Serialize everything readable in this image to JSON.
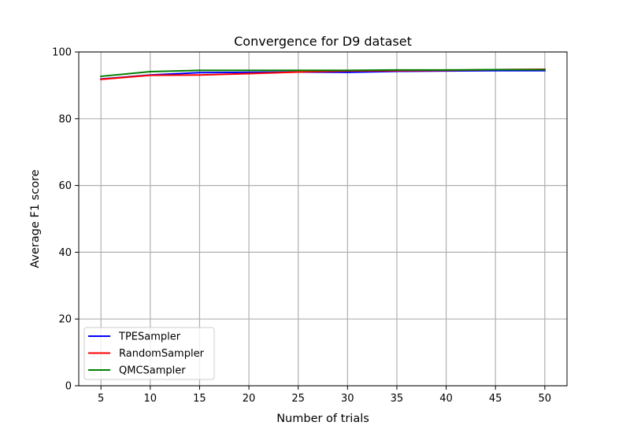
{
  "chart_data": {
    "type": "line",
    "title": "Convergence for D9 dataset",
    "xlabel": "Number of trials",
    "ylabel": "Average F1 score",
    "x": [
      5,
      10,
      15,
      20,
      25,
      30,
      35,
      40,
      45,
      50
    ],
    "xlim": [
      2.75,
      52.25
    ],
    "ylim": [
      0,
      100
    ],
    "x_ticks": [
      5,
      10,
      15,
      20,
      25,
      30,
      35,
      40,
      45,
      50
    ],
    "y_ticks": [
      0,
      20,
      40,
      60,
      80,
      100
    ],
    "grid": true,
    "legend_position": "lower-left",
    "series": [
      {
        "name": "TPESampler",
        "color": "#0000ff",
        "values": [
          91.9,
          93.1,
          93.8,
          93.9,
          94.0,
          93.9,
          94.2,
          94.3,
          94.4,
          94.4
        ]
      },
      {
        "name": "RandomSampler",
        "color": "#ff0000",
        "values": [
          91.8,
          93.0,
          93.1,
          93.5,
          94.0,
          94.3,
          94.4,
          94.5,
          94.7,
          94.8
        ]
      },
      {
        "name": "QMCSampler",
        "color": "#008000",
        "values": [
          92.7,
          94.1,
          94.5,
          94.5,
          94.5,
          94.5,
          94.6,
          94.6,
          94.7,
          94.7
        ]
      }
    ]
  }
}
